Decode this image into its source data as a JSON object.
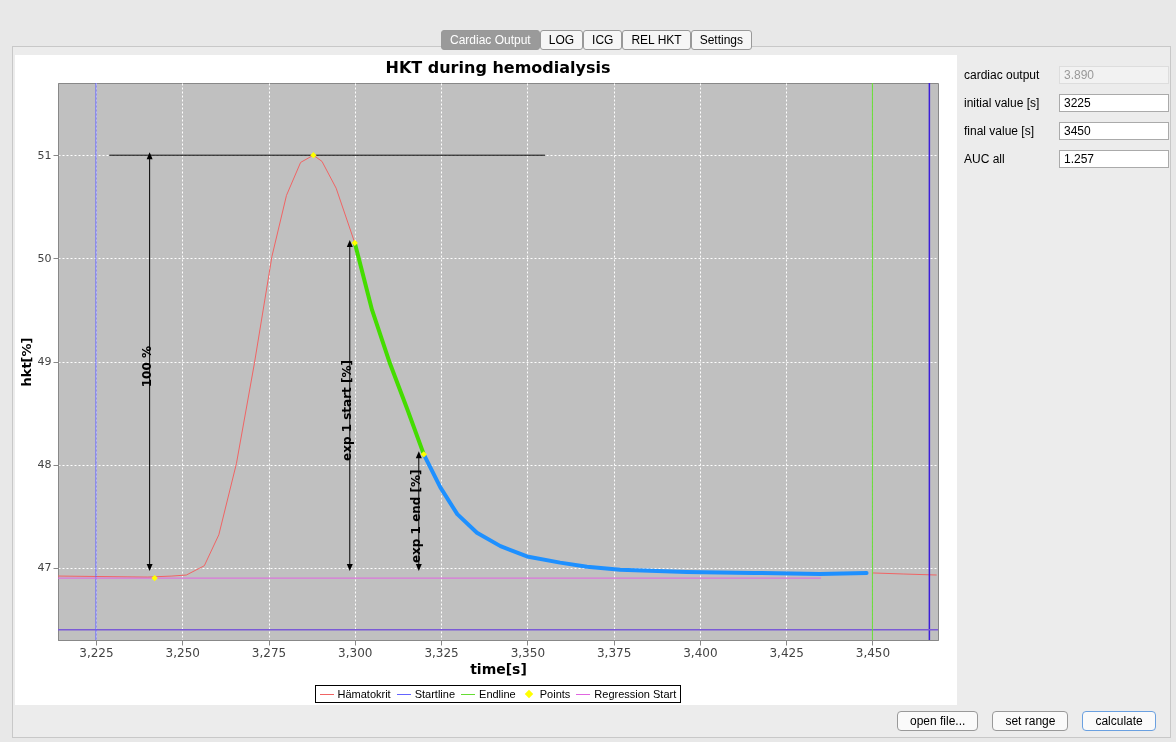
{
  "chart_data": [
    {
      "type": "line",
      "title": "HKT during hemodialysis",
      "xlabel": "time[s]",
      "ylabel": "hkt[%]",
      "xlim": [
        3214,
        3469
      ],
      "ylim": [
        46.3,
        51.7
      ],
      "xticks": [
        {
          "value": 3225,
          "label": "3,225"
        },
        {
          "value": 3250,
          "label": "3,250"
        },
        {
          "value": 3275,
          "label": "3,275"
        },
        {
          "value": 3300,
          "label": "3,300"
        },
        {
          "value": 3325,
          "label": "3,325"
        },
        {
          "value": 3350,
          "label": "3,350"
        },
        {
          "value": 3375,
          "label": "3,375"
        },
        {
          "value": 3400,
          "label": "3,400"
        },
        {
          "value": 3425,
          "label": "3,425"
        },
        {
          "value": 3450,
          "label": "3,450"
        }
      ],
      "yticks": [
        47,
        48,
        49,
        50,
        51
      ],
      "grid": true,
      "legend": "bottom",
      "series": [
        {
          "name": "Hämatokrit",
          "type": "line",
          "color": "#f06464",
          "x": [
            3214,
            3240,
            3247,
            3251.2,
            3256.4,
            3260.6,
            3265.7,
            3270.9,
            3276,
            3280.2,
            3284.3,
            3288,
            3290.5,
            3294.6,
            3300,
            3375,
            3450.2,
            3458.9,
            3468.5
          ],
          "values": [
            46.92,
            46.91,
            46.92,
            46.93,
            47.02,
            47.32,
            48.01,
            48.98,
            50.02,
            50.61,
            50.93,
            51,
            50.94,
            50.68,
            50.15,
            null,
            46.95,
            46.94,
            46.93
          ]
        },
        {
          "name": "Startline",
          "type": "line",
          "color": "#6464ff",
          "x": [
            3225,
            3225
          ],
          "values": [
            46.3,
            51.7
          ]
        },
        {
          "name": "Endline",
          "type": "line",
          "color": "#66dd33",
          "x": [
            3450,
            3450
          ],
          "values": [
            46.3,
            51.7
          ]
        },
        {
          "name": "Points",
          "type": "scatter",
          "marker": "diamond",
          "color": "#ffff00",
          "x": [
            3242,
            3288,
            3300,
            3320
          ],
          "values": [
            46.9,
            51,
            50.15,
            48.1
          ]
        },
        {
          "name": "Regression Start",
          "type": "line",
          "color": "#e066e0",
          "x": [
            3214,
            3435
          ],
          "values": [
            46.9,
            46.9
          ]
        },
        {
          "type": "line",
          "color": "#000000",
          "x": [
            3229,
            3355
          ],
          "values": [
            51,
            51
          ]
        },
        {
          "type": "line",
          "color": "#44dd00",
          "x": [
            3300,
            3305,
            3310.2,
            3315.3,
            3320
          ],
          "values": [
            50.15,
            49.5,
            48.98,
            48.53,
            48.1
          ]
        },
        {
          "type": "line",
          "color": "#1e90ff",
          "x": [
            3320,
            3324.8,
            3329.7,
            3335.4,
            3342.2,
            3349.9,
            3359.5,
            3367.3,
            3376.9,
            3396.2,
            3415.5,
            3434.8,
            3448.3
          ],
          "values": [
            48.1,
            47.78,
            47.52,
            47.34,
            47.21,
            47.11,
            47.05,
            47.01,
            46.98,
            46.96,
            46.95,
            46.94,
            46.95
          ]
        }
      ],
      "ref_lines": [
        {
          "axis": "y",
          "value": 46.4,
          "color": "#7b5bd6"
        },
        {
          "axis": "x",
          "value": 3466.5,
          "color": "#3c1ed8"
        }
      ],
      "annotations": [
        "100 %",
        "exp 1 start [%]",
        "exp 1 end [%]"
      ]
    },
    {
      "type": "other",
      "annotations": [
        "Cardiac Output",
        "LOG",
        "ICG",
        "REL HKT",
        "Settings",
        "cardiac output",
        "3.890",
        "initial value [s]",
        "3225",
        "final value [s]",
        "3450",
        "AUC all",
        "1.257",
        "open file...",
        "set range",
        "calculate"
      ]
    }
  ]
}
